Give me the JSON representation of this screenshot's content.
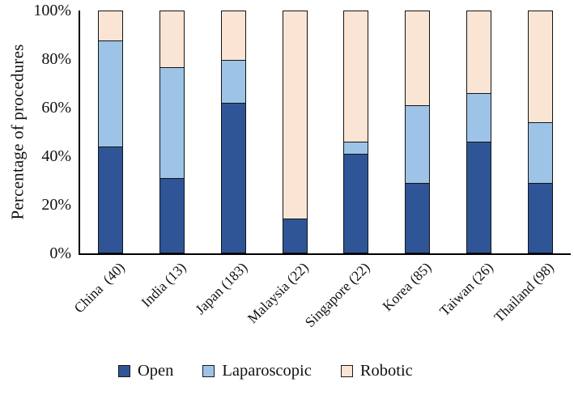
{
  "chart_data": {
    "type": "bar",
    "stacked": true,
    "title": "",
    "xlabel": "",
    "ylabel": "Percentage of procedures",
    "ylim": [
      0,
      100
    ],
    "ytick_values": [
      0,
      20,
      40,
      60,
      80,
      100
    ],
    "ytick_labels": [
      "0%",
      "20%",
      "40%",
      "60%",
      "80%",
      "100%"
    ],
    "grid": false,
    "legend_position": "bottom",
    "bar_outline_color": "#141414",
    "categories": [
      "China  (40)",
      "India (13)",
      "Japan (183)",
      "Malaysia (22)",
      "Singapore (22)",
      "Korea (85)",
      "Taiwan (26)",
      "Thailand (98)"
    ],
    "series": [
      {
        "name": "Open",
        "color": "#2F5597",
        "values": [
          44,
          31,
          62,
          14,
          41,
          29,
          46,
          29
        ]
      },
      {
        "name": "Laparoscopic",
        "color": "#9DC3E6",
        "values": [
          44,
          46,
          18,
          0,
          5,
          32,
          20,
          25
        ]
      },
      {
        "name": "Robotic",
        "color": "#FAE5D5",
        "values": [
          12,
          23,
          20,
          86,
          54,
          39,
          34,
          46
        ]
      }
    ]
  }
}
